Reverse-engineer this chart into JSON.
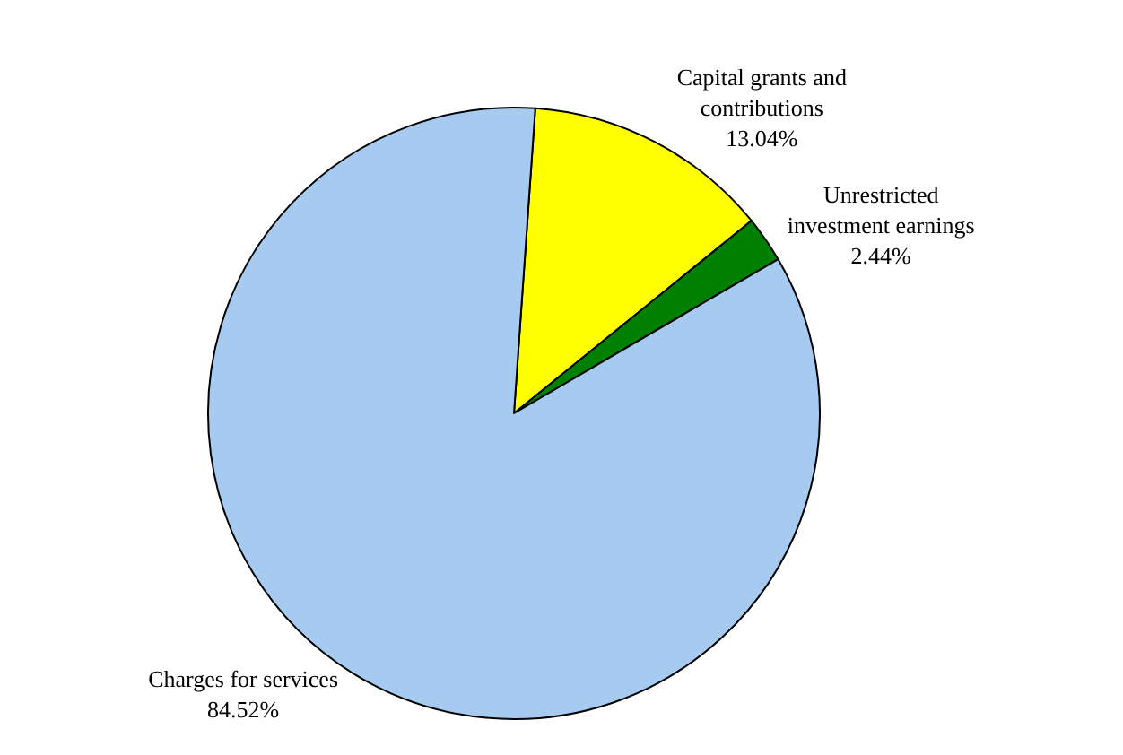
{
  "chart_data": {
    "type": "pie",
    "categories": [
      "Capital grants and contributions",
      "Unrestricted investment earnings",
      "Charges for services"
    ],
    "values": [
      13.04,
      2.44,
      84.52
    ],
    "colors": [
      "#ffff00",
      "#008000",
      "#a6caf0"
    ],
    "value_labels": [
      "13.04%",
      "2.44%",
      "84.52%"
    ],
    "legend": false
  }
}
